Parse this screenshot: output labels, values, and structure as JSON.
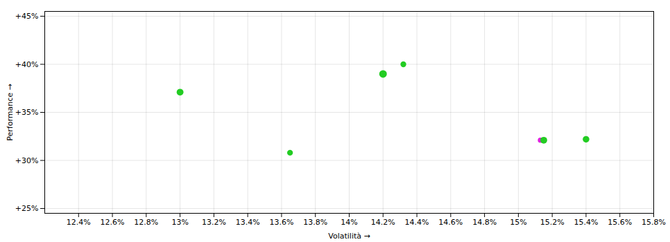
{
  "chart_data": {
    "type": "scatter",
    "xlabel": "Volatilità",
    "ylabel": "Performance",
    "x": [
      0.13,
      0.1365,
      0.142,
      0.1432,
      0.1513,
      0.1515,
      0.154
    ],
    "values": [
      0.371,
      0.308,
      0.39,
      0.4,
      0.321,
      0.321,
      0.322
    ],
    "colors": [
      "#22cc22",
      "#22cc22",
      "#22cc22",
      "#22cc22",
      "#dd22dd",
      "#22cc22",
      "#22cc22"
    ],
    "sizes": [
      28,
      20,
      35,
      20,
      16,
      28,
      26
    ],
    "xlim": [
      0.122,
      0.158
    ],
    "ylim": [
      0.245,
      0.455
    ],
    "xticks": [
      {
        "value": 0.124,
        "label": "12.4%"
      },
      {
        "value": 0.126,
        "label": "12.6%"
      },
      {
        "value": 0.128,
        "label": "12.8%"
      },
      {
        "value": 0.13,
        "label": "13%"
      },
      {
        "value": 0.132,
        "label": "13.2%"
      },
      {
        "value": 0.134,
        "label": "13.4%"
      },
      {
        "value": 0.136,
        "label": "13.6%"
      },
      {
        "value": 0.138,
        "label": "13.8%"
      },
      {
        "value": 0.14,
        "label": "14%"
      },
      {
        "value": 0.142,
        "label": "14.2%"
      },
      {
        "value": 0.144,
        "label": "14.4%"
      },
      {
        "value": 0.146,
        "label": "14.6%"
      },
      {
        "value": 0.148,
        "label": "14.8%"
      },
      {
        "value": 0.15,
        "label": "15%"
      },
      {
        "value": 0.152,
        "label": "15.2%"
      },
      {
        "value": 0.154,
        "label": "15.4%"
      },
      {
        "value": 0.156,
        "label": "15.6%"
      },
      {
        "value": 0.158,
        "label": "15.8%"
      }
    ],
    "yticks": [
      {
        "value": 0.25,
        "label": "+25%"
      },
      {
        "value": 0.3,
        "label": "+30%"
      },
      {
        "value": 0.35,
        "label": "+35%"
      },
      {
        "value": 0.4,
        "label": "+40%"
      },
      {
        "value": 0.45,
        "label": "+45%"
      }
    ],
    "grid": true
  }
}
